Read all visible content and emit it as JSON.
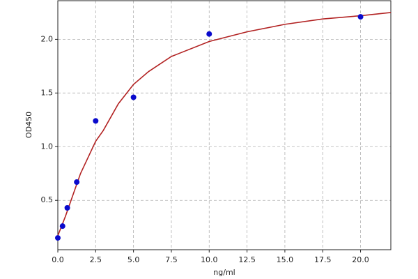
{
  "chart_data": {
    "type": "scatter",
    "xlabel": "ng/ml",
    "ylabel": "OD450",
    "series": [
      {
        "kind": "points",
        "color": "#0a0acc",
        "x": [
          0,
          0.3125,
          0.625,
          1.25,
          2.5,
          5,
          10,
          20
        ],
        "values": [
          0.15,
          0.26,
          0.43,
          0.67,
          1.24,
          1.46,
          2.05,
          2.21
        ]
      },
      {
        "kind": "curve",
        "color": "#b22222",
        "x": [
          0,
          0.5,
          1,
          1.5,
          2,
          2.5,
          3,
          4,
          5,
          6,
          7.5,
          10,
          12.5,
          15,
          17.5,
          20,
          22
        ],
        "values": [
          0.17,
          0.35,
          0.55,
          0.75,
          0.9,
          1.05,
          1.15,
          1.4,
          1.58,
          1.7,
          1.84,
          1.98,
          2.07,
          2.14,
          2.19,
          2.22,
          2.25
        ]
      }
    ],
    "xlim": [
      0,
      22
    ],
    "ylim": [
      0.04,
      2.36
    ],
    "xticks": [
      {
        "value": 0,
        "label": "0.0"
      },
      2.5,
      {
        "value": 5,
        "label": "5.0"
      },
      7.5,
      {
        "value": 10,
        "label": "10.0"
      },
      12.5,
      {
        "value": 15,
        "label": "15.0"
      },
      17.5,
      {
        "value": 20,
        "label": "20.0"
      }
    ],
    "yticks": [
      0.5,
      {
        "value": 1,
        "label": "1.0"
      },
      1.5,
      {
        "value": 2,
        "label": "2.0"
      }
    ],
    "grid": true
  }
}
